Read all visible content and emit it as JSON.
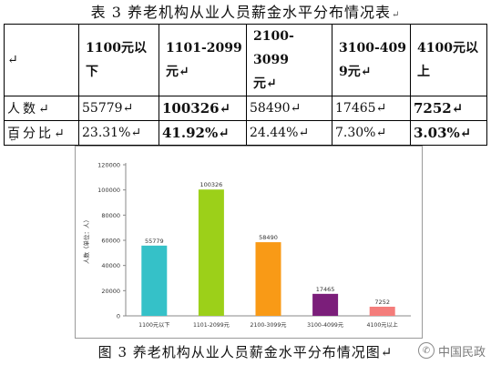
{
  "table": {
    "title": "表 3  养老机构从业人员薪金水平分布情况表",
    "return_mark": "↵",
    "corner_mark": "↵",
    "headers": [
      {
        "line1": "1100元以",
        "line2": "下"
      },
      {
        "line1": "1101-2099",
        "line2": "元↵"
      },
      {
        "line1": "2100-3099",
        "line2": "元↵"
      },
      {
        "line1": "3100-409",
        "line2": "9元↵"
      },
      {
        "line1": "4100元以",
        "line2": "上"
      }
    ],
    "rows": [
      {
        "label": "人数↵",
        "cells": [
          "55779↵",
          "100326↵",
          "58490↵",
          "17465↵",
          "7252↵"
        ]
      },
      {
        "label": "百分比↵",
        "cells": [
          "23.31%↵",
          "41.92%↵",
          "24.44%↵",
          "7.30%↵",
          "3.03%↵"
        ]
      }
    ]
  },
  "para_mark": "↵",
  "chart_data": {
    "type": "bar",
    "ylabel": "人数（单位：人）",
    "ylim": [
      0,
      120000
    ],
    "yticks": [
      "0",
      "20000",
      "40000",
      "60000",
      "80000",
      "100000",
      "120000"
    ],
    "grid": false,
    "categories": [
      "1100元以下",
      "1101-2099元",
      "2100-3099元",
      "3100-4099元",
      "4100元以上"
    ],
    "values": [
      55779,
      100326,
      58490,
      17465,
      7252
    ],
    "data_labels": [
      "55779",
      "100326",
      "58490",
      "17465",
      "7252"
    ],
    "colors": [
      "#35c1c8",
      "#9cd019",
      "#f99a16",
      "#7b1e7a",
      "#f47d7b"
    ]
  },
  "figure": {
    "caption": "图 3  养老机构从业人员薪金水平分布情况图↵"
  },
  "watermark": {
    "icon": "wechat-icon",
    "text": "中国民政"
  }
}
